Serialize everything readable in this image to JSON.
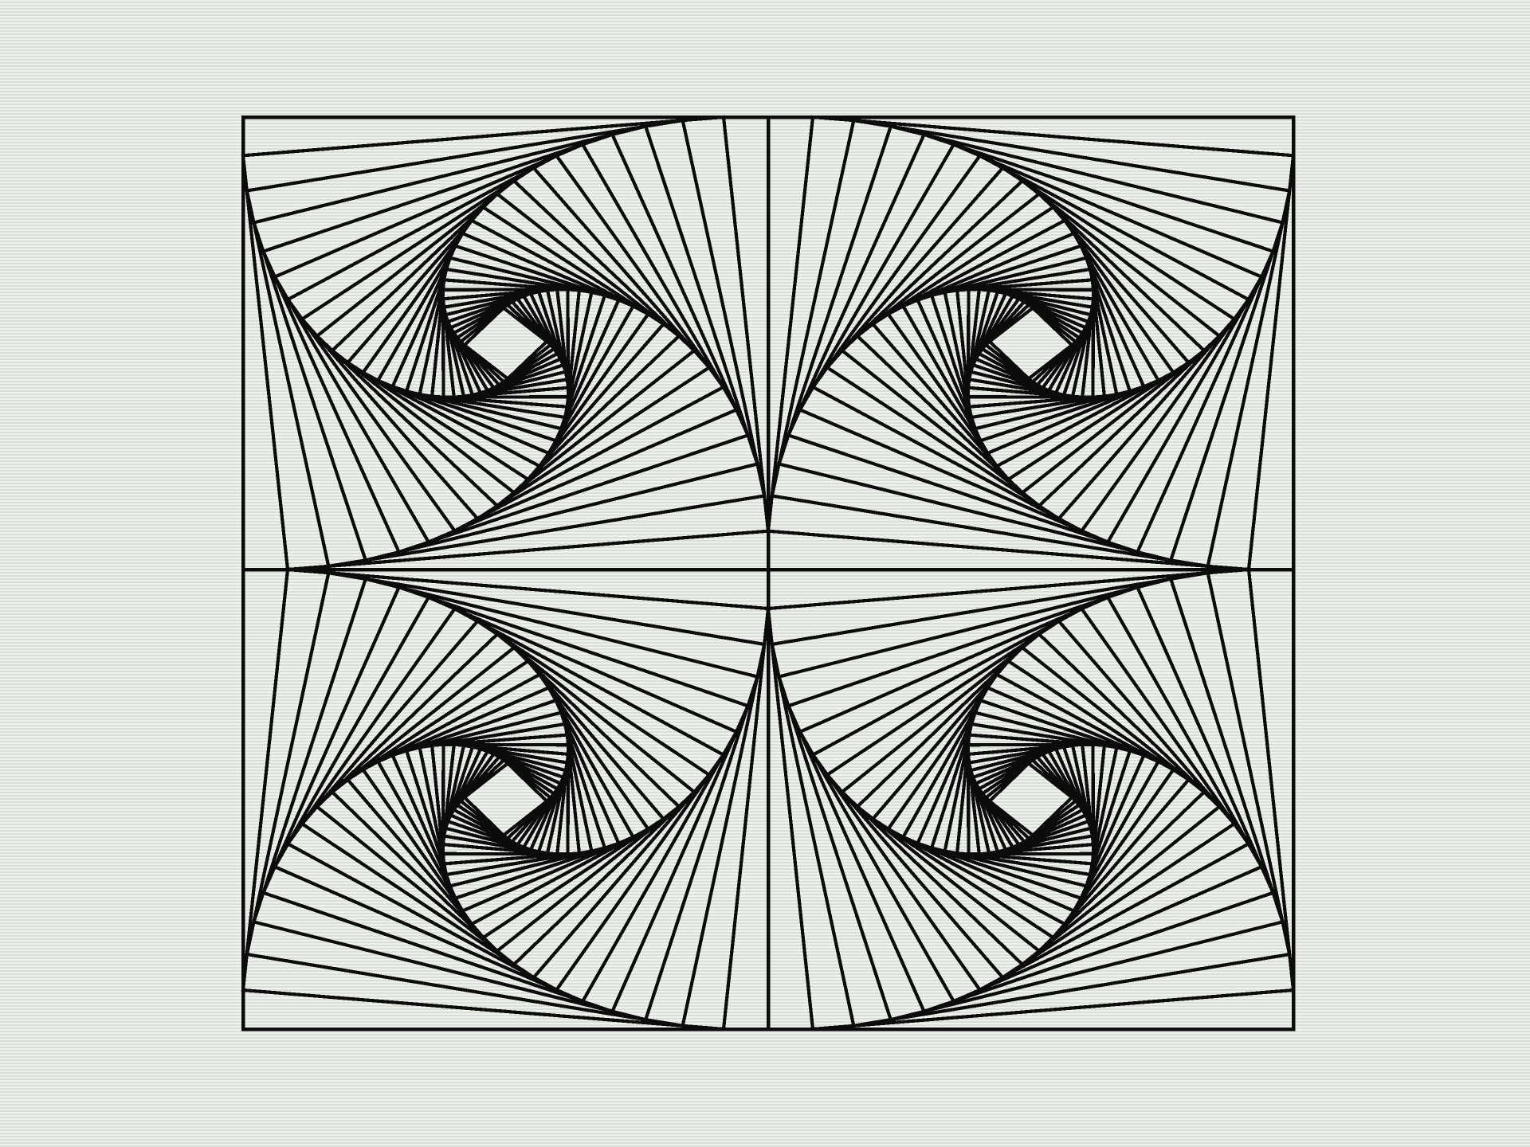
{
  "screen": {
    "background_color": "#e6ebe4",
    "line_color": "#0c0c0c"
  },
  "artwork": {
    "description_label": "",
    "panels": [
      {
        "id": "top-left",
        "rotation": "counterclockwise"
      },
      {
        "id": "top-right",
        "rotation": "clockwise"
      },
      {
        "id": "bottom-left",
        "rotation": "clockwise"
      },
      {
        "id": "bottom-right",
        "rotation": "counterclockwise"
      }
    ],
    "squares_per_spiral": 26,
    "twist_fraction_per_step": 0.085
  }
}
